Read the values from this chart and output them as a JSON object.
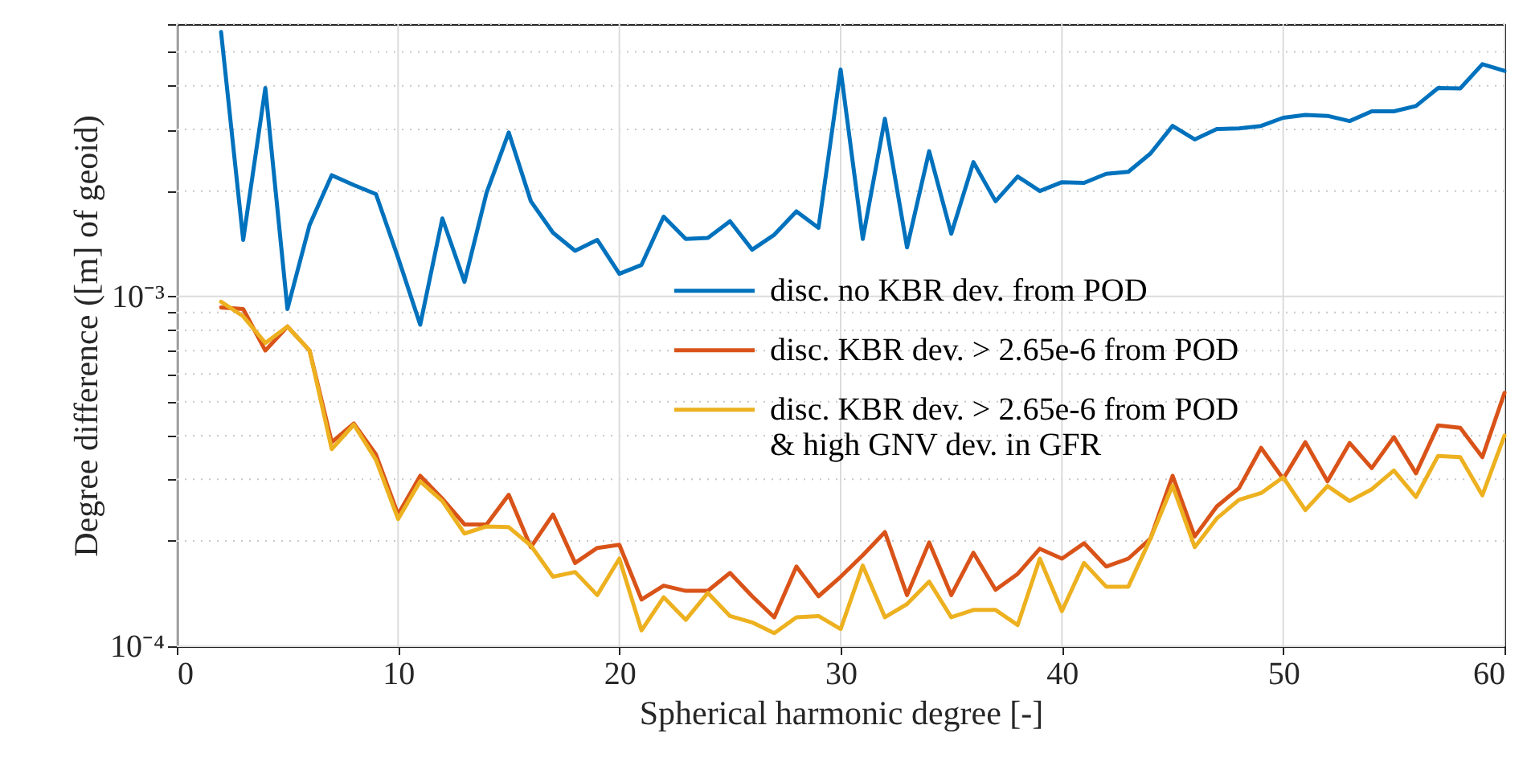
{
  "chart_data": {
    "type": "line",
    "xlabel": "Spherical harmonic degree [-]",
    "ylabel": "Degree difference ([m] of geoid)",
    "x": [
      2,
      3,
      4,
      5,
      6,
      7,
      8,
      9,
      10,
      11,
      12,
      13,
      14,
      15,
      16,
      17,
      18,
      19,
      20,
      21,
      22,
      23,
      24,
      25,
      26,
      27,
      28,
      29,
      30,
      31,
      32,
      33,
      34,
      35,
      36,
      37,
      38,
      39,
      40,
      41,
      42,
      43,
      44,
      45,
      46,
      47,
      48,
      49,
      50,
      51,
      52,
      53,
      54,
      55,
      56,
      57,
      58,
      59,
      60
    ],
    "series": [
      {
        "name": "disc. no KBR dev. from POD",
        "color": "#0072bd",
        "values": [
          0.0057,
          0.00145,
          0.00394,
          0.00092,
          0.0016,
          0.00222,
          0.00208,
          0.00196,
          0.00129,
          0.00083,
          0.00167,
          0.0011,
          0.00198,
          0.00294,
          0.00187,
          0.00152,
          0.00135,
          0.00145,
          0.00116,
          0.00123,
          0.00169,
          0.00146,
          0.00147,
          0.00164,
          0.00136,
          0.0015,
          0.00175,
          0.00157,
          0.00445,
          0.00146,
          0.00322,
          0.00138,
          0.0026,
          0.00151,
          0.00242,
          0.00187,
          0.0022,
          0.002,
          0.00212,
          0.00211,
          0.00224,
          0.00227,
          0.00256,
          0.00307,
          0.00281,
          0.00301,
          0.00302,
          0.00307,
          0.00324,
          0.0033,
          0.00328,
          0.00317,
          0.00338,
          0.00338,
          0.0035,
          0.00394,
          0.00393,
          0.00461,
          0.00441
        ]
      },
      {
        "name": "disc. KBR dev. > 2.65e-6 from POD",
        "color": "#d95319",
        "values": [
          0.00093,
          0.00092,
          0.0007,
          0.00082,
          0.0007,
          0.000383,
          0.000433,
          0.000353,
          0.000238,
          0.000307,
          0.000264,
          0.000223,
          0.000223,
          0.000271,
          0.000192,
          0.000238,
          0.000173,
          0.000191,
          0.000195,
          0.000136,
          0.000149,
          0.000144,
          0.000144,
          0.000162,
          0.000139,
          0.000121,
          0.000169,
          0.000139,
          0.000158,
          0.000182,
          0.000212,
          0.00014,
          0.000198,
          0.00014,
          0.000185,
          0.000145,
          0.000161,
          0.00019,
          0.000178,
          0.000197,
          0.000169,
          0.000178,
          0.000203,
          0.000307,
          0.000206,
          0.000251,
          0.000283,
          0.000369,
          0.000301,
          0.000383,
          0.000296,
          0.000381,
          0.000323,
          0.000396,
          0.000312,
          0.000428,
          0.000421,
          0.000347,
          0.00053
        ]
      },
      {
        "name": "disc. KBR dev. > 2.65e-6 from POD\n& high GNV dev. in GFR",
        "color": "#edb120",
        "values": [
          0.000965,
          0.000877,
          0.000736,
          0.00082,
          0.0007,
          0.000366,
          0.00043,
          0.000341,
          0.000231,
          0.000296,
          0.00026,
          0.00021,
          0.00022,
          0.000219,
          0.000194,
          0.000158,
          0.000163,
          0.00014,
          0.000178,
          0.000111,
          0.000138,
          0.000119,
          0.000142,
          0.000122,
          0.000117,
          0.000109,
          0.000121,
          0.000122,
          0.000112,
          0.00017,
          0.000121,
          0.000132,
          0.000153,
          0.000121,
          0.000127,
          0.000127,
          0.000115,
          0.000178,
          0.000126,
          0.000173,
          0.000148,
          0.000148,
          0.000203,
          0.000288,
          0.000192,
          0.000232,
          0.000262,
          0.000274,
          0.000304,
          0.000245,
          0.000287,
          0.00026,
          0.000281,
          0.000318,
          0.000267,
          0.00035,
          0.000347,
          0.00027,
          0.0004
        ]
      }
    ],
    "xlim": [
      0,
      60
    ],
    "xticks": [
      0,
      10,
      20,
      30,
      40,
      50,
      60
    ],
    "ylim": [
      0.0001,
      0.006
    ],
    "log": true,
    "yticks": [
      {
        "value": 0.0001,
        "label": "10⁻⁴"
      },
      {
        "value": 0.0002,
        "label": null
      },
      {
        "value": 0.0003,
        "label": null
      },
      {
        "value": 0.0004,
        "label": null
      },
      {
        "value": 0.0005,
        "label": null
      },
      {
        "value": 0.0006,
        "label": null
      },
      {
        "value": 0.0007,
        "label": null
      },
      {
        "value": 0.0008,
        "label": null
      },
      {
        "value": 0.0009,
        "label": null
      },
      {
        "value": 0.001,
        "label": "10⁻³"
      },
      {
        "value": 0.002,
        "label": null
      },
      {
        "value": 0.003,
        "label": null
      },
      {
        "value": 0.004,
        "label": null
      },
      {
        "value": 0.005,
        "label": null
      },
      {
        "value": 0.006,
        "label": null
      }
    ],
    "grid": true,
    "legend": "right",
    "line_style": "solid",
    "marker": "none"
  }
}
